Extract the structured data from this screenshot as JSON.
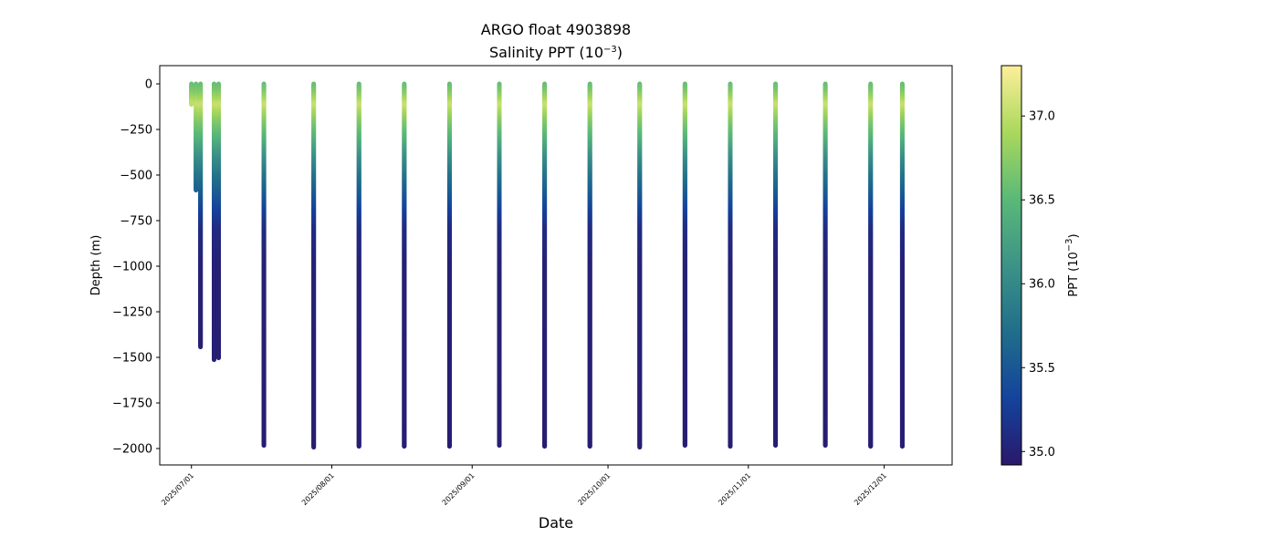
{
  "chart_data": {
    "type": "scatter",
    "title": "ARGO float 4903898",
    "subtitle_prefix": "Salinity PPT (10",
    "subtitle_exp": "−3",
    "subtitle_suffix": ")",
    "xlabel": "Date",
    "ylabel": "Depth (m)",
    "colorbar_label_prefix": "PPT (10",
    "colorbar_label_exp": "−3",
    "colorbar_label_suffix": ")",
    "colormap": "haline",
    "colormap_colors": [
      "#2a186c",
      "#14439c",
      "#206e8b",
      "#3c9387",
      "#5ab978",
      "#aad85c",
      "#fdef9a"
    ],
    "color_range": [
      34.92,
      37.3
    ],
    "xlim": [
      "2025-06-24",
      "2025-12-16"
    ],
    "ylim": [
      -2090,
      100
    ],
    "x_ticks": [
      "2025/07/01",
      "2025/08/01",
      "2025/09/01",
      "2025/10/01",
      "2025/11/01",
      "2025/12/01"
    ],
    "y_ticks": [
      0,
      -250,
      -500,
      -750,
      -1000,
      -1250,
      -1500,
      -1750,
      -2000
    ],
    "y_tick_labels": [
      "0",
      "−250",
      "−500",
      "−750",
      "−1000",
      "−1250",
      "−1500",
      "−1750",
      "−2000"
    ],
    "colorbar_ticks": [
      35.0,
      35.5,
      36.0,
      36.5,
      37.0
    ],
    "colorbar_tick_labels": [
      "35.0",
      "35.5",
      "36.0",
      "36.5",
      "37.0"
    ],
    "profiles": [
      {
        "date": "2025-07-01",
        "max_depth": 110
      },
      {
        "date": "2025-07-02",
        "max_depth": 580
      },
      {
        "date": "2025-07-03",
        "max_depth": 1440
      },
      {
        "date": "2025-07-06",
        "max_depth": 1510
      },
      {
        "date": "2025-07-07",
        "max_depth": 1500
      },
      {
        "date": "2025-07-17",
        "max_depth": 1980
      },
      {
        "date": "2025-07-28",
        "max_depth": 1990
      },
      {
        "date": "2025-08-07",
        "max_depth": 1985
      },
      {
        "date": "2025-08-17",
        "max_depth": 1985
      },
      {
        "date": "2025-08-27",
        "max_depth": 1985
      },
      {
        "date": "2025-09-07",
        "max_depth": 1980
      },
      {
        "date": "2025-09-17",
        "max_depth": 1985
      },
      {
        "date": "2025-09-27",
        "max_depth": 1985
      },
      {
        "date": "2025-10-08",
        "max_depth": 1990
      },
      {
        "date": "2025-10-18",
        "max_depth": 1980
      },
      {
        "date": "2025-10-28",
        "max_depth": 1985
      },
      {
        "date": "2025-11-07",
        "max_depth": 1980
      },
      {
        "date": "2025-11-18",
        "max_depth": 1980
      },
      {
        "date": "2025-11-28",
        "max_depth": 1985
      },
      {
        "date": "2025-12-05",
        "max_depth": 1985
      }
    ],
    "salinity_profile_template": [
      {
        "depth": 0,
        "salinity": 36.55
      },
      {
        "depth": 50,
        "salinity": 36.7
      },
      {
        "depth": 120,
        "salinity": 37.05
      },
      {
        "depth": 200,
        "salinity": 36.75
      },
      {
        "depth": 300,
        "salinity": 36.45
      },
      {
        "depth": 400,
        "salinity": 36.1
      },
      {
        "depth": 500,
        "salinity": 35.8
      },
      {
        "depth": 600,
        "salinity": 35.55
      },
      {
        "depth": 700,
        "salinity": 35.3
      },
      {
        "depth": 800,
        "salinity": 35.1
      },
      {
        "depth": 1000,
        "salinity": 35.0
      },
      {
        "depth": 2000,
        "salinity": 34.97
      }
    ]
  }
}
